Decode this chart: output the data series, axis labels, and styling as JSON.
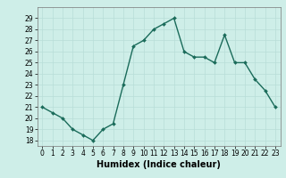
{
  "x": [
    0,
    1,
    2,
    3,
    4,
    5,
    6,
    7,
    8,
    9,
    10,
    11,
    12,
    13,
    14,
    15,
    16,
    17,
    18,
    19,
    20,
    21,
    22,
    23
  ],
  "y": [
    21,
    20.5,
    20,
    19,
    18.5,
    18,
    19,
    19.5,
    23,
    26.5,
    27,
    28,
    28.5,
    29,
    26,
    25.5,
    25.5,
    25,
    27.5,
    25,
    25,
    23.5,
    22.5,
    21
  ],
  "line_color": "#1a6b5a",
  "marker_color": "#1a6b5a",
  "bg_color": "#ceeee8",
  "grid_color": "#b8ddd8",
  "xlabel": "Humidex (Indice chaleur)",
  "xlim": [
    -0.5,
    23.5
  ],
  "ylim": [
    17.5,
    30
  ],
  "yticks": [
    18,
    19,
    20,
    21,
    22,
    23,
    24,
    25,
    26,
    27,
    28,
    29
  ],
  "xticks": [
    0,
    1,
    2,
    3,
    4,
    5,
    6,
    7,
    8,
    9,
    10,
    11,
    12,
    13,
    14,
    15,
    16,
    17,
    18,
    19,
    20,
    21,
    22,
    23
  ],
  "tick_fontsize": 5.5,
  "xlabel_fontsize": 7.0,
  "line_width": 1.0,
  "marker_size": 2.0
}
